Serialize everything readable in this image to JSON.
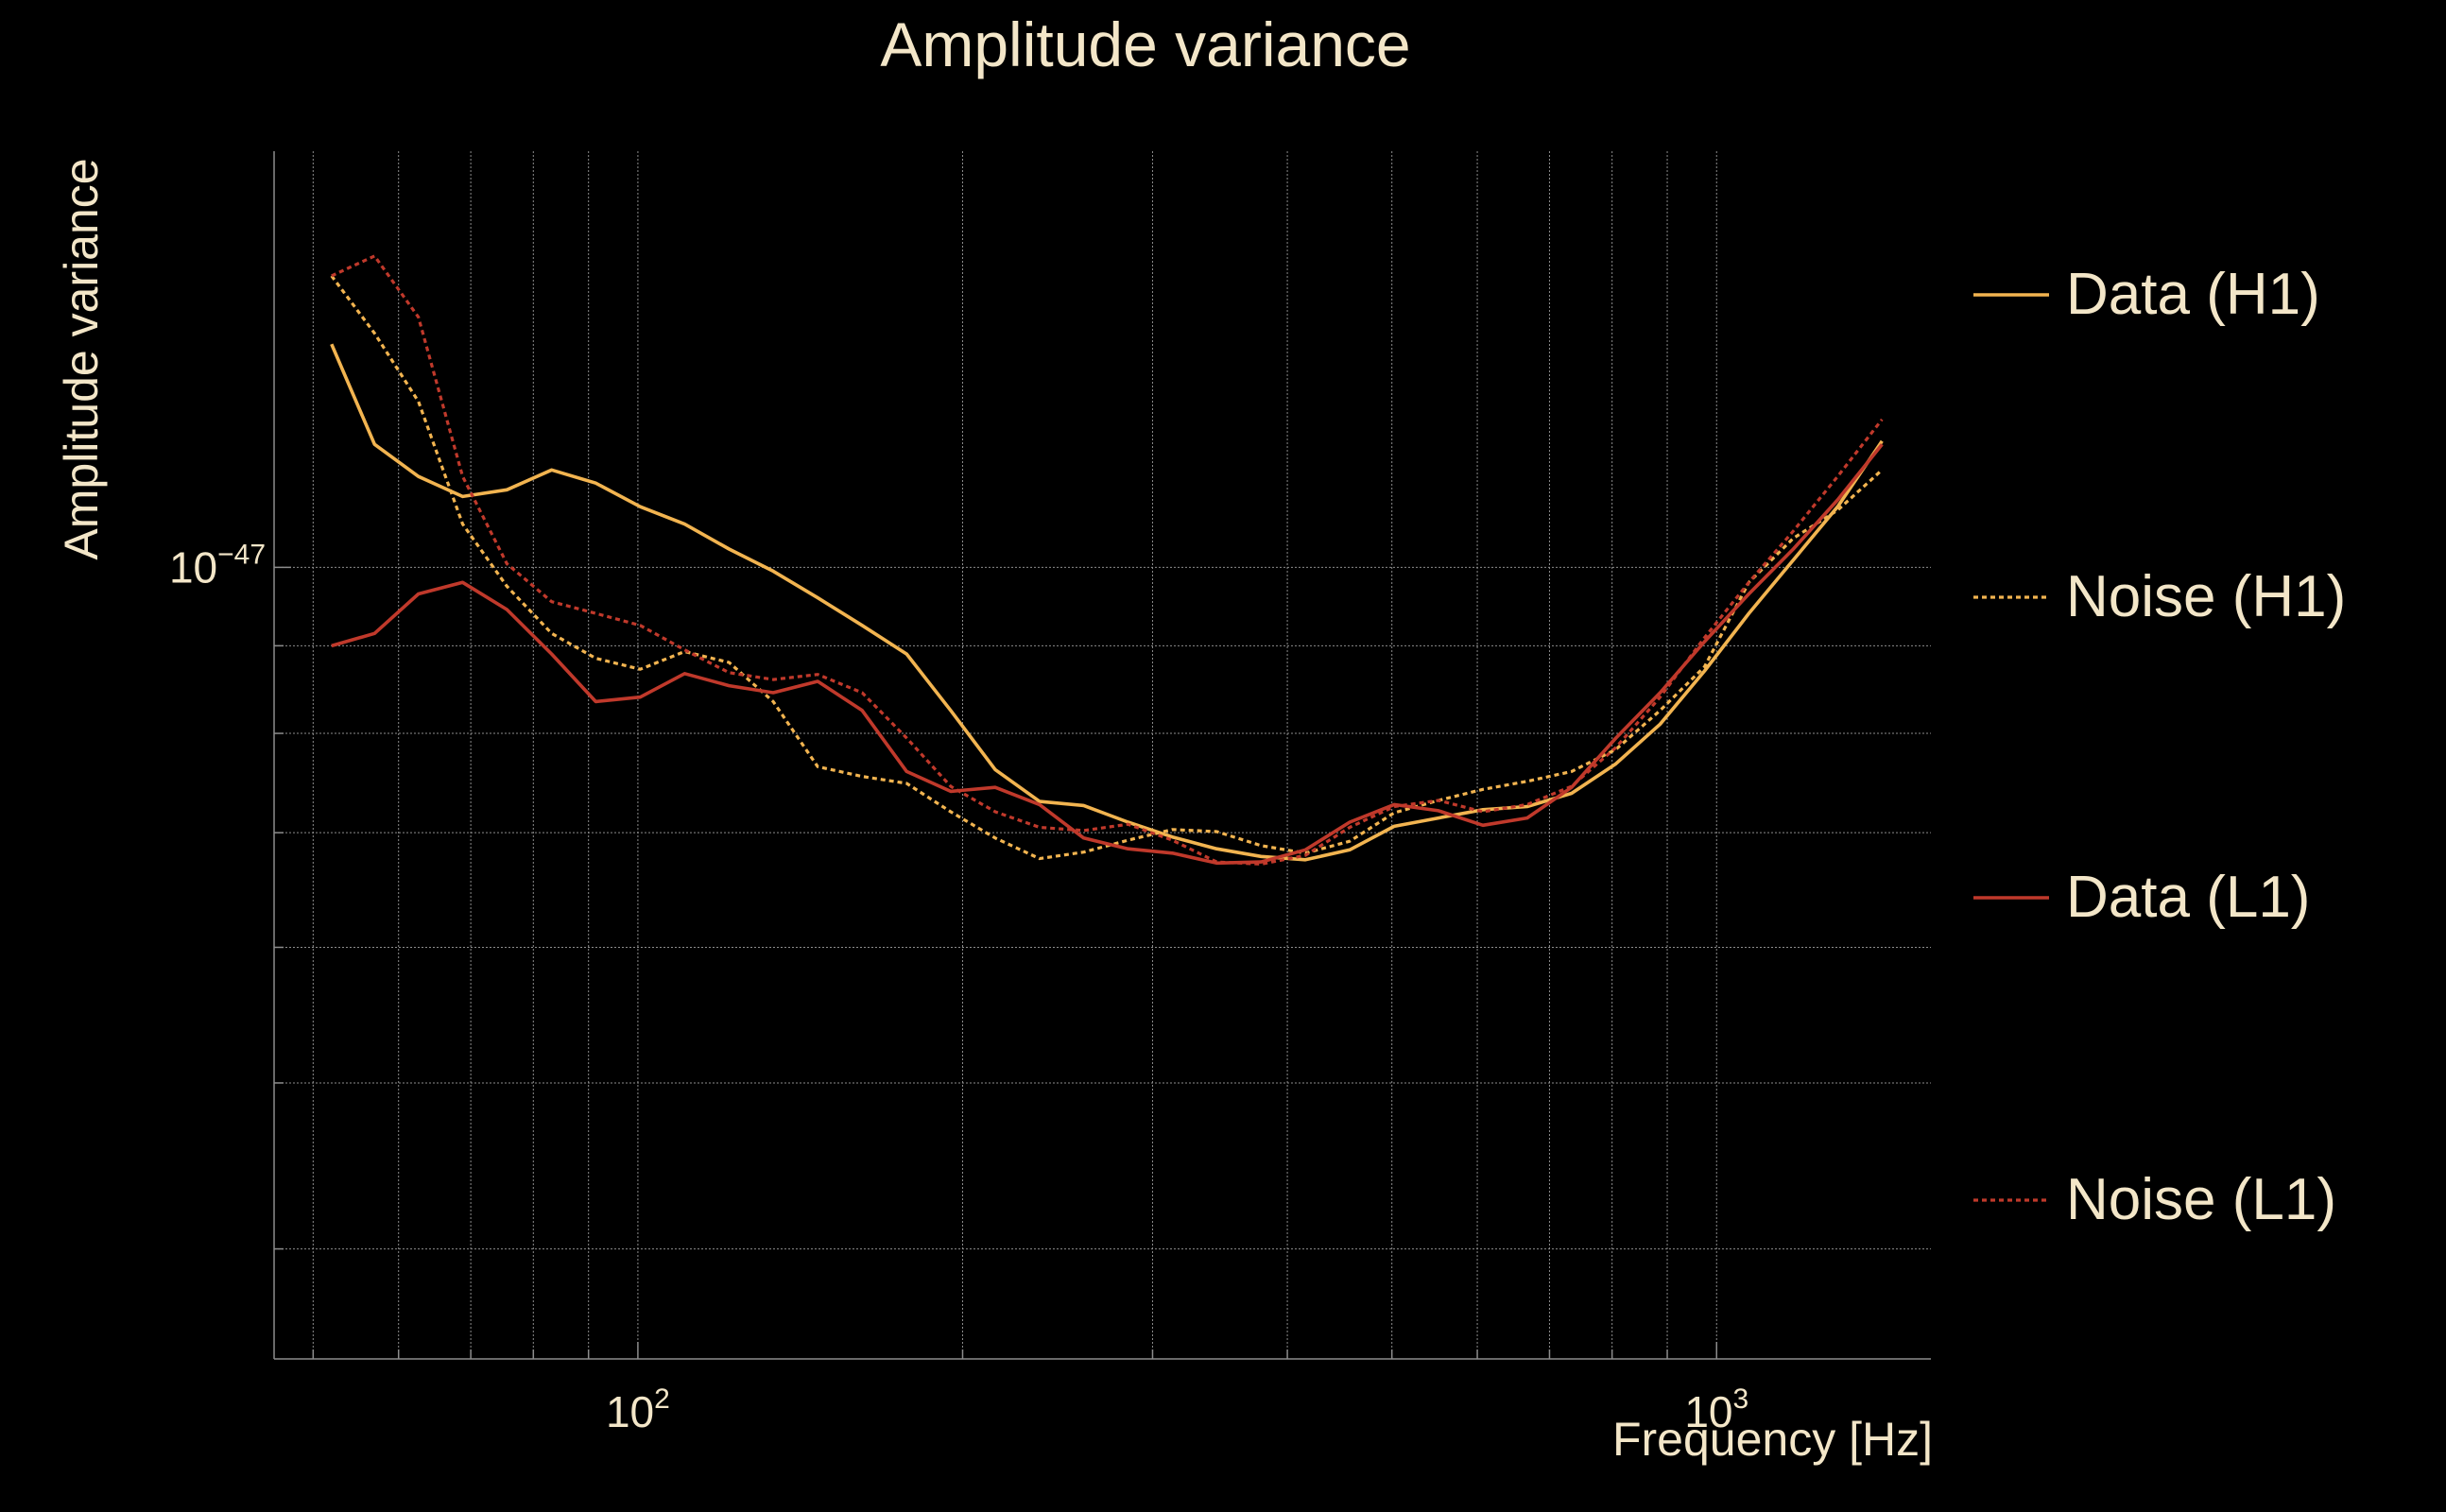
{
  "colors": {
    "background": "#000000",
    "text": "#f3e6c8",
    "grid": "#8c8c8c",
    "h1": "#f2b450",
    "l1": "#c0392b"
  },
  "chart_data": {
    "type": "line",
    "title": "Amplitude variance",
    "xlabel": "Frequency [Hz]",
    "ylabel": "Amplitude variance",
    "xscale": "log",
    "yscale": "log",
    "xlim": [
      46,
      1580
    ],
    "ylim": [
      3.45e-48,
      1.75e-47
    ],
    "xticks": [
      {
        "value": 100,
        "base": "10",
        "exp": "2"
      },
      {
        "value": 1000,
        "base": "10",
        "exp": "3"
      }
    ],
    "yticks": [
      {
        "value": 1e-47,
        "base": "10",
        "exp": "−47"
      }
    ],
    "grid": true,
    "legend": "right",
    "x": [
      52,
      57,
      62.6,
      68.8,
      75.6,
      83.2,
      91.4,
      100.5,
      110.5,
      121.5,
      133.5,
      146.8,
      161.4,
      177.5,
      195,
      214.4,
      235.7,
      259,
      284.7,
      313,
      344,
      378.2,
      415.7,
      457,
      502.4,
      552.3,
      607.2,
      667.4,
      733.7,
      806.5,
      886.5,
      974.6,
      1071.4,
      1177.8,
      1294.7,
      1423.4
    ],
    "series": [
      {
        "name": "Data (H1)",
        "style": "solid",
        "color": "#f2b450",
        "values": [
          1.35e-47,
          1.18e-47,
          1.13e-47,
          1.1e-47,
          1.11e-47,
          1.14e-47,
          1.12e-47,
          1.085e-47,
          1.06e-47,
          1.025e-47,
          9.95e-48,
          9.6e-48,
          9.25e-48,
          8.9e-48,
          8.25e-48,
          7.62e-48,
          7.3e-48,
          7.26e-48,
          7.1e-48,
          6.96e-48,
          6.85e-48,
          6.78e-48,
          6.75e-48,
          6.84e-48,
          7.06e-48,
          7.14e-48,
          7.22e-48,
          7.25e-48,
          7.38e-48,
          7.68e-48,
          8.1e-48,
          8.7e-48,
          9.4e-48,
          1.01e-47,
          1.085e-47,
          1.185e-47
        ]
      },
      {
        "name": "Noise (H1)",
        "style": "dotted",
        "color": "#f2b450",
        "values": [
          1.48e-47,
          1.37e-47,
          1.25e-47,
          1.06e-47,
          9.75e-48,
          9.15e-48,
          8.85e-48,
          8.72e-48,
          8.93e-48,
          8.8e-48,
          8.35e-48,
          7.65e-48,
          7.55e-48,
          7.48e-48,
          7.2e-48,
          6.95e-48,
          6.76e-48,
          6.82e-48,
          6.93e-48,
          7.03e-48,
          7.01e-48,
          6.88e-48,
          6.81e-48,
          6.92e-48,
          7.19e-48,
          7.31e-48,
          7.42e-48,
          7.5e-48,
          7.6e-48,
          7.83e-48,
          8.25e-48,
          8.75e-48,
          9.8e-48,
          1.04e-47,
          1.08e-47,
          1.14e-47
        ]
      },
      {
        "name": "Data (L1)",
        "style": "solid",
        "color": "#c0392b",
        "values": [
          9e-48,
          9.15e-48,
          9.65e-48,
          9.8e-48,
          9.45e-48,
          8.9e-48,
          8.35e-48,
          8.4e-48,
          8.67e-48,
          8.53e-48,
          8.45e-48,
          8.58e-48,
          8.25e-48,
          7.6e-48,
          7.4e-48,
          7.44e-48,
          7.27e-48,
          6.95e-48,
          6.85e-48,
          6.81e-48,
          6.72e-48,
          6.73e-48,
          6.84e-48,
          7.1e-48,
          7.27e-48,
          7.21e-48,
          7.07e-48,
          7.14e-48,
          7.44e-48,
          7.95e-48,
          8.45e-48,
          9.05e-48,
          9.65e-48,
          1.025e-47,
          1.095e-47,
          1.18e-47
        ]
      },
      {
        "name": "Noise (L1)",
        "style": "dotted",
        "color": "#c0392b",
        "values": [
          1.48e-47,
          1.52e-47,
          1.4e-47,
          1.13e-47,
          1.005e-47,
          9.55e-48,
          9.4e-48,
          9.25e-48,
          8.95e-48,
          8.68e-48,
          8.6e-48,
          8.66e-48,
          8.45e-48,
          7.95e-48,
          7.45e-48,
          7.2e-48,
          7.05e-48,
          7.02e-48,
          7.08e-48,
          6.93e-48,
          6.73e-48,
          6.71e-48,
          6.79e-48,
          7.05e-48,
          7.25e-48,
          7.31e-48,
          7.2e-48,
          7.27e-48,
          7.45e-48,
          7.85e-48,
          8.4e-48,
          9.1e-48,
          9.8e-48,
          1.05e-47,
          1.13e-47,
          1.22e-47
        ]
      }
    ]
  }
}
